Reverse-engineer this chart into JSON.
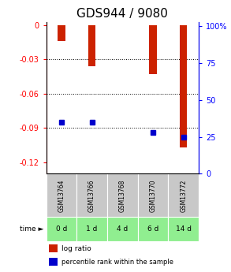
{
  "title": "GDS944 / 9080",
  "samples": [
    "GSM13764",
    "GSM13766",
    "GSM13768",
    "GSM13770",
    "GSM13772"
  ],
  "time_labels": [
    "0 d",
    "1 d",
    "4 d",
    "6 d",
    "14 d"
  ],
  "log_ratios": [
    -0.014,
    -0.036,
    0.0,
    -0.043,
    -0.107
  ],
  "percentile_ranks": [
    35.0,
    35.0,
    null,
    28.0,
    25.0
  ],
  "ylim_left": [
    -0.13,
    0.003
  ],
  "ylim_right": [
    0,
    103
  ],
  "yticks_left": [
    0,
    -0.03,
    -0.06,
    -0.09,
    -0.12
  ],
  "yticks_right": [
    0,
    25,
    50,
    75,
    100
  ],
  "bar_color": "#CC2200",
  "dot_color": "#0000CC",
  "label_bg_color": "#C8C8C8",
  "time_bg_color": "#90EE90",
  "title_fontsize": 11,
  "tick_fontsize": 7,
  "bar_width": 0.25
}
